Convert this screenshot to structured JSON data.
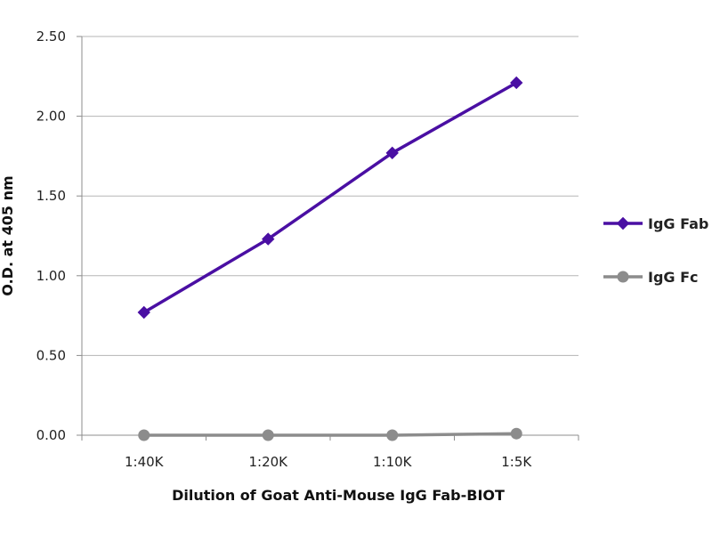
{
  "chart_data": {
    "type": "line",
    "title": "",
    "xlabel": "Dilution of Goat Anti-Mouse IgG Fab-BIOT",
    "ylabel": "O.D. at 405 nm",
    "categories": [
      "1:40K",
      "1:20K",
      "1:10K",
      "1:5K"
    ],
    "ylim": [
      0,
      2.5
    ],
    "yticks": [
      "0.00",
      "0.50",
      "1.00",
      "1.50",
      "2.00",
      "2.50"
    ],
    "grid": true,
    "legend_position": "right",
    "series": [
      {
        "name": "IgG Fab",
        "values": [
          0.77,
          1.23,
          1.77,
          2.21
        ],
        "color": "#4a0fa3",
        "marker": "diamond"
      },
      {
        "name": "IgG Fc",
        "values": [
          0.0,
          0.0,
          0.0,
          0.01
        ],
        "color": "#8c8c8c",
        "marker": "circle"
      }
    ]
  }
}
